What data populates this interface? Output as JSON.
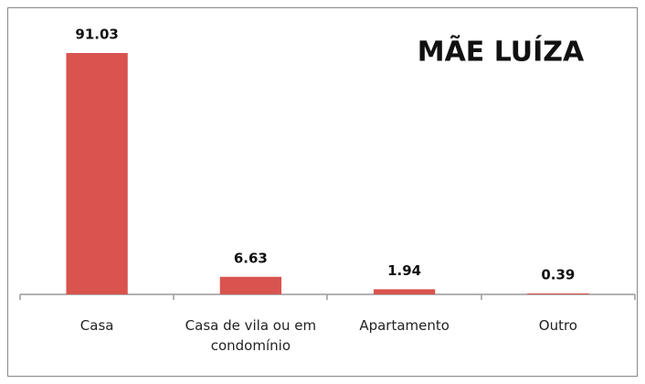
{
  "chart_data": {
    "type": "bar",
    "title": "MÃE LUÍZA",
    "categories": [
      "Casa",
      "Casa de vila ou em condomínio",
      "Apartamento",
      "Outro"
    ],
    "values": [
      91.03,
      6.63,
      1.94,
      0.39
    ],
    "color": "#d9534f"
  }
}
